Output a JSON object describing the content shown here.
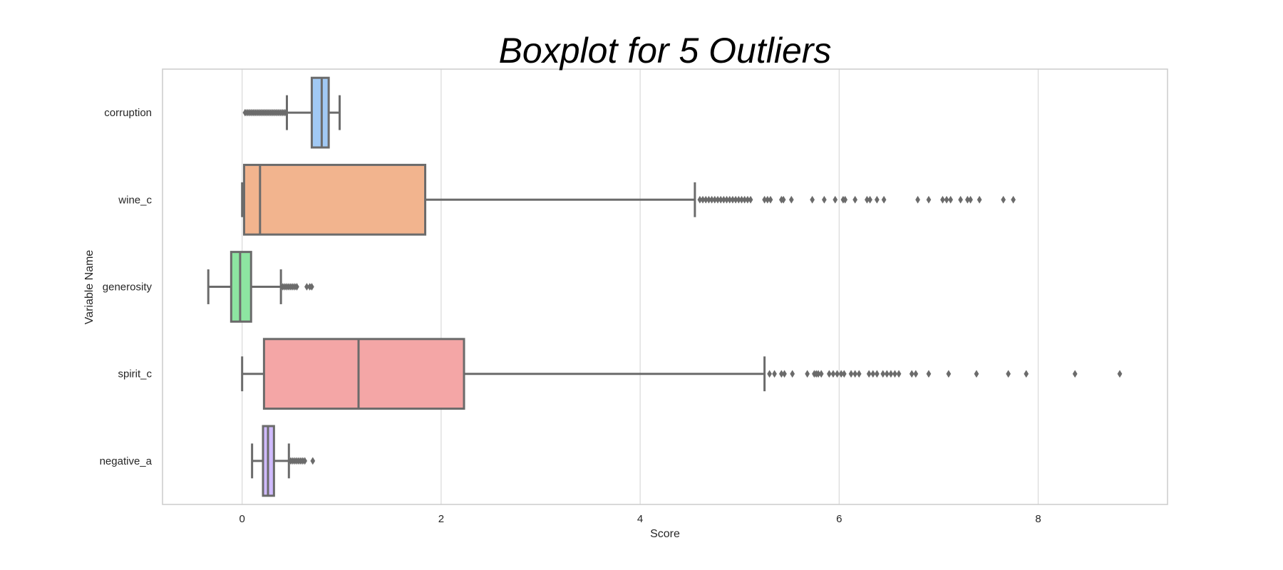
{
  "chart_data": {
    "type": "boxplot",
    "title": "Boxplot for 5 Outliers",
    "xlabel": "Score",
    "ylabel": "Variable Name",
    "orientation": "horizontal",
    "xlim": [
      -0.8,
      9.3
    ],
    "xticks": [
      0,
      2,
      4,
      6,
      8
    ],
    "grid": "vertical",
    "colors": {
      "box_edge": "#6b6b6b",
      "grid": "#d9d9d9",
      "frame": "#cccccc"
    },
    "categories": [
      "corruption",
      "wine_c",
      "generosity",
      "spirit_c",
      "negative_a"
    ],
    "boxes": [
      {
        "name": "corruption",
        "color": "#a1c9f4",
        "whisker_low": 0.45,
        "q1": 0.7,
        "median": 0.8,
        "q3": 0.87,
        "whisker_high": 0.98,
        "outliers": [
          0.03,
          0.05,
          0.07,
          0.09,
          0.11,
          0.13,
          0.15,
          0.17,
          0.19,
          0.21,
          0.23,
          0.25,
          0.27,
          0.29,
          0.31,
          0.33,
          0.35,
          0.37,
          0.39,
          0.41,
          0.43
        ]
      },
      {
        "name": "wine_c",
        "color": "#f2b48e",
        "whisker_low": 0.0,
        "q1": 0.02,
        "median": 0.18,
        "q3": 1.84,
        "whisker_high": 4.55,
        "outliers": [
          4.6,
          4.63,
          4.66,
          4.69,
          4.72,
          4.75,
          4.78,
          4.81,
          4.84,
          4.87,
          4.9,
          4.93,
          4.96,
          4.99,
          5.02,
          5.05,
          5.08,
          5.11,
          5.25,
          5.28,
          5.31,
          5.42,
          5.44,
          5.52,
          5.73,
          5.85,
          5.96,
          6.04,
          6.06,
          6.16,
          6.28,
          6.31,
          6.38,
          6.45,
          6.79,
          6.9,
          7.04,
          7.08,
          7.12,
          7.22,
          7.29,
          7.32,
          7.41,
          7.65,
          7.75
        ]
      },
      {
        "name": "generosity",
        "color": "#8de5a1",
        "whisker_low": -0.34,
        "q1": -0.11,
        "median": -0.02,
        "q3": 0.09,
        "whisker_high": 0.39,
        "outliers": [
          0.41,
          0.43,
          0.45,
          0.47,
          0.49,
          0.51,
          0.53,
          0.55,
          0.65,
          0.68,
          0.7
        ]
      },
      {
        "name": "spirit_c",
        "color": "#f4a6a6",
        "whisker_low": 0.0,
        "q1": 0.22,
        "median": 1.17,
        "q3": 2.23,
        "whisker_high": 5.25,
        "outliers": [
          5.3,
          5.35,
          5.42,
          5.45,
          5.53,
          5.68,
          5.75,
          5.77,
          5.79,
          5.82,
          5.9,
          5.94,
          5.98,
          6.02,
          6.05,
          6.12,
          6.16,
          6.2,
          6.3,
          6.34,
          6.38,
          6.44,
          6.48,
          6.52,
          6.56,
          6.6,
          6.73,
          6.77,
          6.9,
          7.1,
          7.38,
          7.7,
          7.88,
          8.37,
          8.82
        ]
      },
      {
        "name": "negative_a",
        "color": "#d0bbff",
        "whisker_low": 0.1,
        "q1": 0.21,
        "median": 0.26,
        "q3": 0.32,
        "whisker_high": 0.47,
        "outliers": [
          0.49,
          0.51,
          0.53,
          0.55,
          0.57,
          0.59,
          0.61,
          0.63,
          0.71
        ]
      }
    ]
  }
}
